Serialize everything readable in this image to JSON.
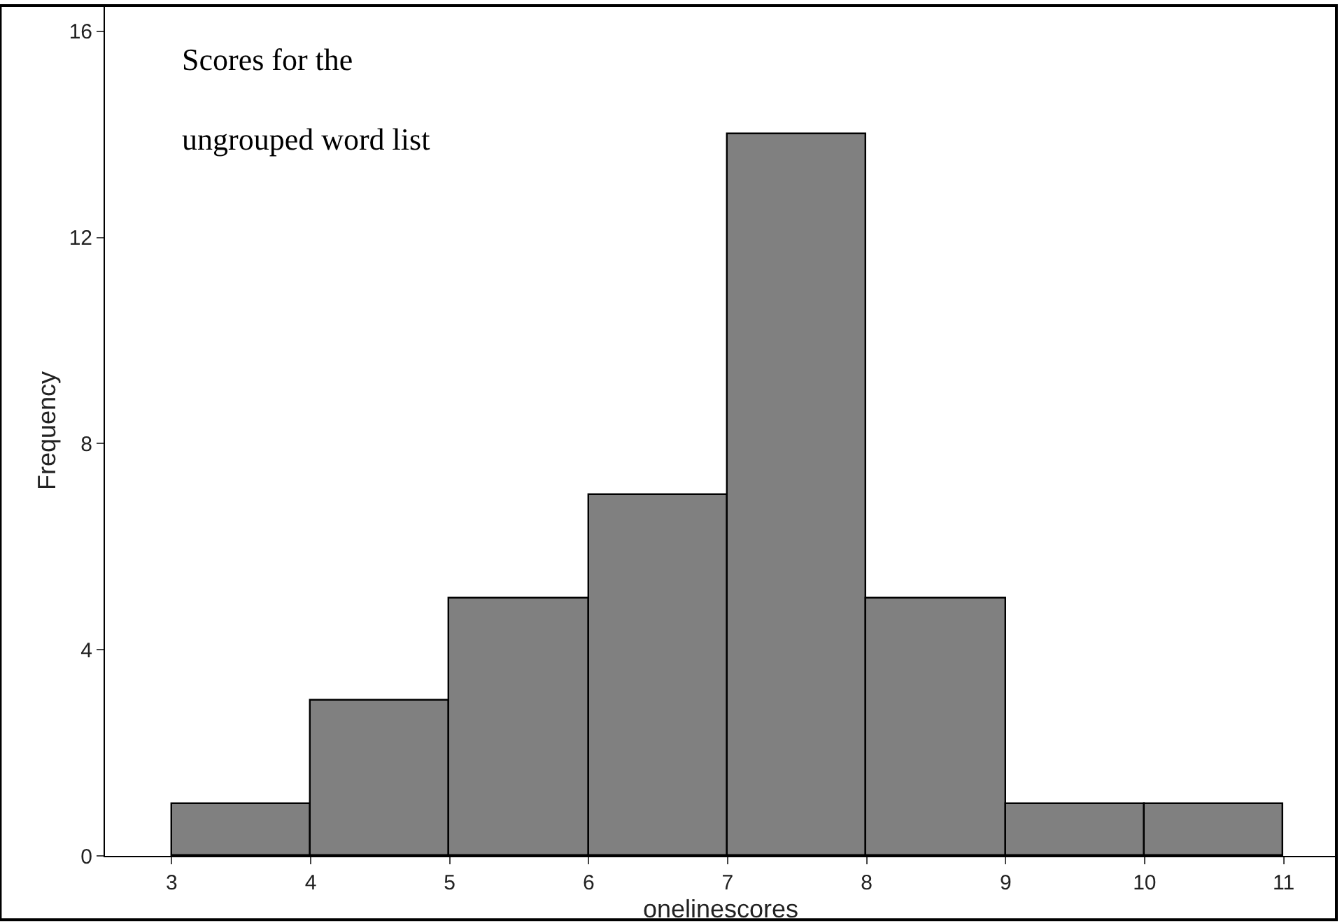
{
  "chart_data": {
    "type": "histogram",
    "xlabel": "onelinescores",
    "ylabel": "Frequency",
    "annotations": [
      "Scores for the\nungrouped word list"
    ],
    "bins": [
      3,
      4,
      5,
      6,
      7,
      8,
      9,
      10,
      11
    ],
    "values": [
      1,
      3,
      5,
      7,
      14,
      5,
      1,
      1
    ],
    "color": "#808080",
    "xlim": [
      2.52,
      11.38
    ],
    "xticks": [
      3,
      4,
      5,
      6,
      7,
      8,
      9,
      10,
      11
    ],
    "ylim": [
      0,
      16.5
    ],
    "yticks": [
      0,
      4,
      8,
      12,
      16
    ],
    "grid": false
  }
}
